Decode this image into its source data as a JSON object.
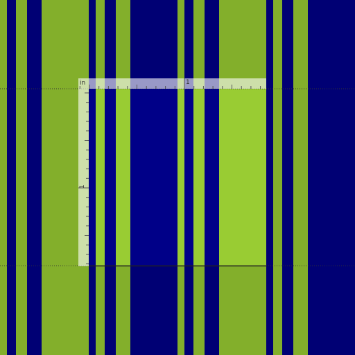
{
  "ruler": {
    "unit": "in",
    "top_label": "1",
    "left_label": "1"
  }
}
